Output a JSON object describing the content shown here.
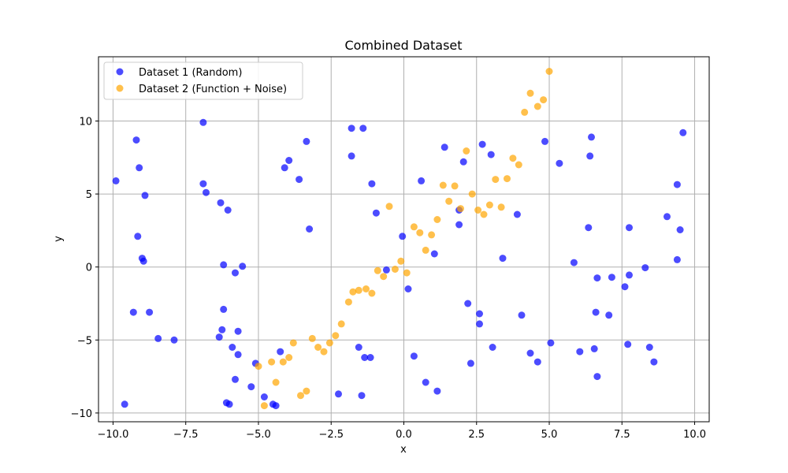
{
  "chart_data": {
    "type": "scatter",
    "title": "Combined Dataset",
    "xlabel": "x",
    "ylabel": "y",
    "xlim": [
      -10.5,
      10.5
    ],
    "ylim": [
      -10.6,
      14.4
    ],
    "xticks": [
      -10,
      -7.5,
      -5,
      -2.5,
      0,
      2.5,
      5,
      7.5,
      10
    ],
    "xtick_labels": [
      "−10.0",
      "−7.5",
      "−5.0",
      "−2.5",
      "0.0",
      "2.5",
      "5.0",
      "7.5",
      "10.0"
    ],
    "yticks": [
      -10,
      -5,
      0,
      5,
      10
    ],
    "ytick_labels": [
      "−10",
      "−5",
      "0",
      "5",
      "10"
    ],
    "grid": true,
    "legend_position": "top-left",
    "series": [
      {
        "name": "Dataset 1 (Random)",
        "color": "#0000ff",
        "points": [
          [
            -9.9,
            5.9
          ],
          [
            -9.6,
            -9.4
          ],
          [
            -9.3,
            -3.1
          ],
          [
            -9.2,
            8.7
          ],
          [
            -9.1,
            6.8
          ],
          [
            -9.15,
            2.1
          ],
          [
            -9.0,
            0.6
          ],
          [
            -8.95,
            0.4
          ],
          [
            -8.9,
            4.9
          ],
          [
            -8.75,
            -3.1
          ],
          [
            -8.45,
            -4.9
          ],
          [
            -7.9,
            -5.0
          ],
          [
            -6.9,
            9.9
          ],
          [
            -6.9,
            5.7
          ],
          [
            -6.8,
            5.1
          ],
          [
            -6.35,
            -4.8
          ],
          [
            -6.3,
            4.4
          ],
          [
            -6.25,
            -4.3
          ],
          [
            -6.2,
            -2.9
          ],
          [
            -6.2,
            0.15
          ],
          [
            -6.1,
            -9.3
          ],
          [
            -6.05,
            3.9
          ],
          [
            -6.0,
            -9.4
          ],
          [
            -5.9,
            -5.5
          ],
          [
            -5.8,
            -7.7
          ],
          [
            -5.8,
            -0.4
          ],
          [
            -5.7,
            -6.0
          ],
          [
            -5.7,
            -4.4
          ],
          [
            -5.55,
            0.05
          ],
          [
            -5.25,
            -8.2
          ],
          [
            -5.1,
            -6.6
          ],
          [
            -4.8,
            -8.9
          ],
          [
            -4.5,
            -9.4
          ],
          [
            -4.4,
            -9.5
          ],
          [
            -4.25,
            -5.8
          ],
          [
            -4.1,
            6.8
          ],
          [
            -3.95,
            7.3
          ],
          [
            -3.6,
            6.0
          ],
          [
            -3.35,
            8.6
          ],
          [
            -3.25,
            2.6
          ],
          [
            -2.25,
            -8.7
          ],
          [
            -1.8,
            9.5
          ],
          [
            -1.8,
            7.6
          ],
          [
            -1.55,
            -5.5
          ],
          [
            -1.45,
            -8.8
          ],
          [
            -1.4,
            9.5
          ],
          [
            -1.35,
            -6.2
          ],
          [
            -1.15,
            -6.2
          ],
          [
            -1.1,
            5.7
          ],
          [
            -0.95,
            3.7
          ],
          [
            -0.6,
            -0.2
          ],
          [
            -0.05,
            2.1
          ],
          [
            0.15,
            -1.5
          ],
          [
            0.35,
            -6.1
          ],
          [
            0.6,
            5.9
          ],
          [
            0.75,
            -7.9
          ],
          [
            1.05,
            0.9
          ],
          [
            1.15,
            -8.5
          ],
          [
            1.4,
            8.2
          ],
          [
            1.9,
            3.9
          ],
          [
            1.9,
            2.9
          ],
          [
            2.05,
            7.2
          ],
          [
            2.2,
            -2.5
          ],
          [
            2.3,
            -6.6
          ],
          [
            2.6,
            -3.2
          ],
          [
            2.6,
            -3.9
          ],
          [
            2.7,
            8.4
          ],
          [
            3.0,
            7.7
          ],
          [
            3.05,
            -5.5
          ],
          [
            3.4,
            0.6
          ],
          [
            3.9,
            3.6
          ],
          [
            4.05,
            -3.3
          ],
          [
            4.35,
            -5.9
          ],
          [
            4.6,
            -6.5
          ],
          [
            4.85,
            8.6
          ],
          [
            5.05,
            -5.2
          ],
          [
            5.35,
            7.1
          ],
          [
            5.85,
            0.3
          ],
          [
            6.05,
            -5.8
          ],
          [
            6.35,
            2.7
          ],
          [
            6.4,
            7.6
          ],
          [
            6.45,
            8.9
          ],
          [
            6.55,
            -5.6
          ],
          [
            6.6,
            -3.1
          ],
          [
            6.65,
            -7.5
          ],
          [
            6.65,
            -0.75
          ],
          [
            7.05,
            -3.3
          ],
          [
            7.15,
            -0.7
          ],
          [
            7.6,
            -1.35
          ],
          [
            7.7,
            -5.3
          ],
          [
            7.75,
            -0.55
          ],
          [
            7.75,
            2.7
          ],
          [
            8.3,
            -0.05
          ],
          [
            8.45,
            -5.5
          ],
          [
            8.6,
            -6.5
          ],
          [
            9.05,
            3.45
          ],
          [
            9.4,
            0.5
          ],
          [
            9.4,
            5.65
          ],
          [
            9.5,
            2.55
          ],
          [
            9.6,
            9.2
          ]
        ]
      },
      {
        "name": "Dataset 2 (Function + Noise)",
        "color": "#ffa500",
        "points": [
          [
            -5.0,
            -6.8
          ],
          [
            -4.8,
            -9.5
          ],
          [
            -4.55,
            -6.5
          ],
          [
            -4.4,
            -7.9
          ],
          [
            -4.15,
            -6.5
          ],
          [
            -3.95,
            -6.2
          ],
          [
            -3.8,
            -5.2
          ],
          [
            -3.55,
            -8.8
          ],
          [
            -3.35,
            -8.5
          ],
          [
            -3.15,
            -4.9
          ],
          [
            -2.95,
            -5.5
          ],
          [
            -2.75,
            -5.8
          ],
          [
            -2.55,
            -5.2
          ],
          [
            -2.35,
            -4.7
          ],
          [
            -2.15,
            -3.9
          ],
          [
            -1.9,
            -2.4
          ],
          [
            -1.75,
            -1.7
          ],
          [
            -1.55,
            -1.6
          ],
          [
            -1.3,
            -1.5
          ],
          [
            -1.1,
            -1.8
          ],
          [
            -0.9,
            -0.25
          ],
          [
            -0.7,
            -0.65
          ],
          [
            -0.5,
            4.15
          ],
          [
            -0.3,
            -0.15
          ],
          [
            -0.1,
            0.4
          ],
          [
            0.1,
            -0.4
          ],
          [
            0.35,
            2.75
          ],
          [
            0.55,
            2.35
          ],
          [
            0.75,
            1.15
          ],
          [
            0.95,
            2.2
          ],
          [
            1.15,
            3.25
          ],
          [
            1.35,
            5.6
          ],
          [
            1.55,
            4.5
          ],
          [
            1.75,
            5.55
          ],
          [
            1.95,
            4.0
          ],
          [
            2.15,
            7.95
          ],
          [
            2.35,
            5.0
          ],
          [
            2.55,
            3.9
          ],
          [
            2.75,
            3.6
          ],
          [
            2.95,
            4.25
          ],
          [
            3.15,
            6.0
          ],
          [
            3.35,
            4.1
          ],
          [
            3.55,
            6.05
          ],
          [
            3.75,
            7.45
          ],
          [
            3.95,
            7.0
          ],
          [
            4.15,
            10.6
          ],
          [
            4.35,
            11.9
          ],
          [
            4.6,
            11.0
          ],
          [
            4.8,
            11.45
          ],
          [
            5.0,
            13.4
          ]
        ]
      }
    ]
  }
}
